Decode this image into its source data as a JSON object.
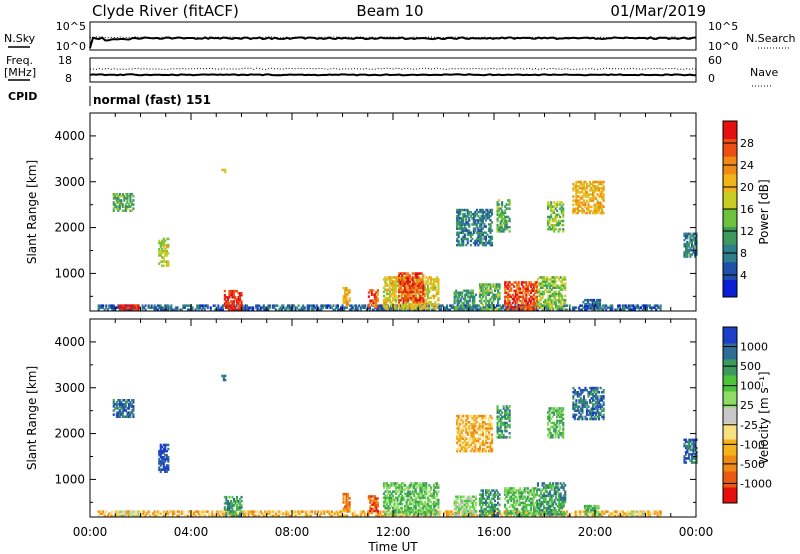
{
  "header": {
    "station": "Clyde River (fitACF)",
    "beam": "Beam 10",
    "date": "01/Mar/2019"
  },
  "top_panels": {
    "nsky": {
      "label": "N.Sky",
      "ticks": [
        "10^5",
        "10^0"
      ]
    },
    "nsearch": {
      "label": "N.Search",
      "ticks": [
        "10^5",
        "10^0"
      ]
    },
    "freq": {
      "label_line1": "Freq.",
      "label_line2": "[MHz]",
      "ticks": [
        "18",
        "8"
      ]
    },
    "nave": {
      "label": "Nave",
      "ticks": [
        "60",
        "0"
      ]
    },
    "cpid": {
      "label": "CPID",
      "value": "normal (fast) 151"
    }
  },
  "chart_data": [
    {
      "type": "heatmap",
      "name": "Power",
      "ylabel": "Slant Range [km]",
      "ylim": [
        180,
        4500
      ],
      "yticks": [
        "1000",
        "2000",
        "3000",
        "4000"
      ],
      "xlim_hours": [
        0,
        24
      ],
      "colorbar": {
        "label": "Power [dB]",
        "ticks": [
          "4",
          "8",
          "12",
          "16",
          "20",
          "24",
          "28"
        ],
        "colors": [
          "#0a1ed6",
          "#1f4fa8",
          "#2f7e8c",
          "#3d9a5c",
          "#6cc23a",
          "#c8cd26",
          "#f0b418",
          "#f08a14",
          "#ee4e14",
          "#e41010"
        ]
      },
      "regions": [
        {
          "t0": 0.3,
          "t1": 22.6,
          "r0": 190,
          "r1": 320,
          "v": 6
        },
        {
          "t0": 1.1,
          "t1": 1.9,
          "r0": 190,
          "r1": 320,
          "v": 28
        },
        {
          "t0": 5.3,
          "t1": 6.0,
          "r0": 190,
          "r1": 640,
          "v": 28
        },
        {
          "t0": 10.0,
          "t1": 10.3,
          "r0": 300,
          "r1": 700,
          "v": 20
        },
        {
          "t0": 11.0,
          "t1": 11.4,
          "r0": 250,
          "r1": 650,
          "v": 24
        },
        {
          "t0": 11.6,
          "t1": 13.8,
          "r0": 220,
          "r1": 900,
          "v": 18
        },
        {
          "t0": 12.2,
          "t1": 13.2,
          "r0": 350,
          "r1": 1000,
          "v": 26
        },
        {
          "t0": 14.4,
          "t1": 15.3,
          "r0": 200,
          "r1": 620,
          "v": 10
        },
        {
          "t0": 15.4,
          "t1": 16.2,
          "r0": 200,
          "r1": 750,
          "v": 12
        },
        {
          "t0": 16.4,
          "t1": 17.7,
          "r0": 200,
          "r1": 800,
          "v": 26
        },
        {
          "t0": 17.7,
          "t1": 18.8,
          "r0": 220,
          "r1": 900,
          "v": 14
        },
        {
          "t0": 19.5,
          "t1": 20.2,
          "r0": 220,
          "r1": 420,
          "v": 6
        },
        {
          "t0": 21.3,
          "t1": 22.0,
          "r0": 190,
          "r1": 300,
          "v": 4
        },
        {
          "t0": 0.9,
          "t1": 1.7,
          "r0": 2350,
          "r1": 2750,
          "v": 12
        },
        {
          "t0": 2.7,
          "t1": 3.1,
          "r0": 1150,
          "r1": 1750,
          "v": 16
        },
        {
          "t0": 5.2,
          "t1": 5.35,
          "r0": 3150,
          "r1": 3280,
          "v": 20
        },
        {
          "t0": 14.5,
          "t1": 15.9,
          "r0": 1600,
          "r1": 2400,
          "v": 8
        },
        {
          "t0": 16.1,
          "t1": 16.6,
          "r0": 1900,
          "r1": 2600,
          "v": 12
        },
        {
          "t0": 18.1,
          "t1": 18.7,
          "r0": 1900,
          "r1": 2550,
          "v": 14
        },
        {
          "t0": 19.1,
          "t1": 20.3,
          "r0": 2300,
          "r1": 3000,
          "v": 20
        },
        {
          "t0": 23.5,
          "t1": 24.0,
          "r0": 1350,
          "r1": 1850,
          "v": 8
        }
      ]
    },
    {
      "type": "heatmap",
      "name": "Velocity",
      "ylabel": "Slant Range [km]",
      "ylim": [
        180,
        4500
      ],
      "yticks": [
        "1000",
        "2000",
        "3000",
        "4000"
      ],
      "xlim_hours": [
        0,
        24
      ],
      "xticks": [
        "00:00",
        "04:00",
        "08:00",
        "12:00",
        "16:00",
        "20:00",
        "00:00"
      ],
      "xlabel": "Time UT",
      "colorbar": {
        "label": "Velocity [m s⁻¹]",
        "ticks": [
          "-1000",
          "-500",
          "-100",
          "-25",
          "25",
          "100",
          "500",
          "1000"
        ],
        "colors": [
          "#e40e0e",
          "#ec5a12",
          "#f08a14",
          "#f4b21c",
          "#f6e082",
          "#c8c8c8",
          "#8edc66",
          "#4dc43a",
          "#3c9a5e",
          "#2f6c96",
          "#1e3ec8"
        ]
      },
      "regions": [
        {
          "t0": 0.3,
          "t1": 22.6,
          "r0": 190,
          "r1": 300,
          "v": 3
        },
        {
          "t0": 1.1,
          "t1": 1.9,
          "r0": 190,
          "r1": 320,
          "v": 5
        },
        {
          "t0": 5.3,
          "t1": 6.0,
          "r0": 190,
          "r1": 640,
          "v": 8
        },
        {
          "t0": 10.0,
          "t1": 10.3,
          "r0": 300,
          "r1": 700,
          "v": 2
        },
        {
          "t0": 11.0,
          "t1": 11.4,
          "r0": 250,
          "r1": 650,
          "v": 1
        },
        {
          "t0": 11.6,
          "t1": 13.8,
          "r0": 220,
          "r1": 900,
          "v": 7
        },
        {
          "t0": 14.4,
          "t1": 15.3,
          "r0": 200,
          "r1": 620,
          "v": 6
        },
        {
          "t0": 15.4,
          "t1": 16.2,
          "r0": 200,
          "r1": 750,
          "v": 8
        },
        {
          "t0": 16.4,
          "t1": 17.7,
          "r0": 200,
          "r1": 800,
          "v": 7
        },
        {
          "t0": 17.7,
          "t1": 18.8,
          "r0": 220,
          "r1": 900,
          "v": 8
        },
        {
          "t0": 19.5,
          "t1": 20.2,
          "r0": 220,
          "r1": 420,
          "v": 7
        },
        {
          "t0": 21.3,
          "t1": 22.0,
          "r0": 190,
          "r1": 300,
          "v": 5
        },
        {
          "t0": 0.9,
          "t1": 1.7,
          "r0": 2350,
          "r1": 2750,
          "v": 9
        },
        {
          "t0": 2.7,
          "t1": 3.1,
          "r0": 1150,
          "r1": 1750,
          "v": 10
        },
        {
          "t0": 5.2,
          "t1": 5.35,
          "r0": 3150,
          "r1": 3280,
          "v": 8
        },
        {
          "t0": 14.5,
          "t1": 15.9,
          "r0": 1600,
          "r1": 2400,
          "v": 3
        },
        {
          "t0": 16.1,
          "t1": 16.6,
          "r0": 1900,
          "r1": 2600,
          "v": 8
        },
        {
          "t0": 18.1,
          "t1": 18.7,
          "r0": 1900,
          "r1": 2550,
          "v": 7
        },
        {
          "t0": 19.1,
          "t1": 20.3,
          "r0": 2300,
          "r1": 3000,
          "v": 9
        },
        {
          "t0": 23.5,
          "t1": 24.0,
          "r0": 1350,
          "r1": 1850,
          "v": 9
        }
      ]
    }
  ]
}
